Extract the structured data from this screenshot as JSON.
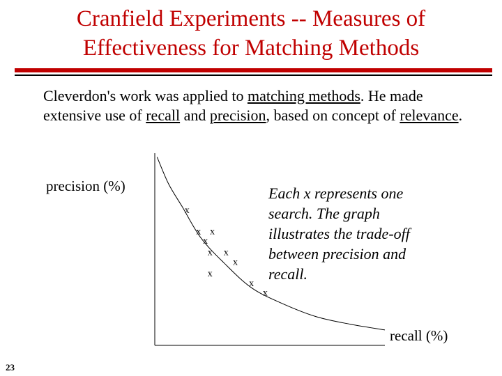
{
  "slide": {
    "title_line1": "Cranfield Experiments -- Measures of",
    "title_line2": "Effectiveness for Matching Methods",
    "page_number": "23",
    "accent_color": "#c00000"
  },
  "intro": {
    "text1": "Cleverdon's work was applied to ",
    "link1": "matching methods",
    "text2": ". He made extensive use of ",
    "link2": "recall",
    "text3": " and ",
    "link3": "precision",
    "text4": ", based on concept of ",
    "link4": "relevance",
    "text5": "."
  },
  "chart_data": {
    "type": "scatter",
    "xlabel": "recall (%)",
    "ylabel": "precision (%)",
    "marker": "x",
    "annotation": "Each x represents one search. The graph illustrates the trade-off between precision and recall.",
    "points": [
      {
        "x": 14,
        "y": 70
      },
      {
        "x": 19,
        "y": 59
      },
      {
        "x": 25,
        "y": 59
      },
      {
        "x": 22,
        "y": 54
      },
      {
        "x": 24,
        "y": 48
      },
      {
        "x": 31,
        "y": 48
      },
      {
        "x": 35,
        "y": 43
      },
      {
        "x": 24,
        "y": 37
      },
      {
        "x": 42,
        "y": 32
      },
      {
        "x": 48,
        "y": 27
      }
    ],
    "curve": [
      {
        "x": 1,
        "y": 98
      },
      {
        "x": 6,
        "y": 84
      },
      {
        "x": 12,
        "y": 72
      },
      {
        "x": 20,
        "y": 56
      },
      {
        "x": 30,
        "y": 43
      },
      {
        "x": 42,
        "y": 30
      },
      {
        "x": 55,
        "y": 22
      },
      {
        "x": 70,
        "y": 15
      },
      {
        "x": 85,
        "y": 11
      },
      {
        "x": 100,
        "y": 8
      }
    ]
  }
}
